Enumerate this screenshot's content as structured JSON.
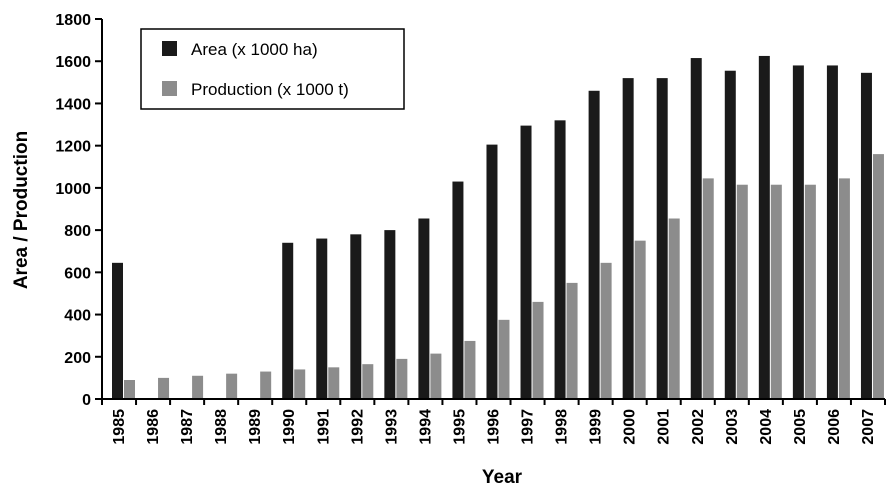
{
  "chart_data": {
    "type": "bar",
    "xlabel": "Year",
    "ylabel": "Area / Production",
    "ylim": [
      0,
      1800
    ],
    "ytick_step": 200,
    "grid": false,
    "legend_position": "top-left",
    "categories": [
      "1985",
      "1986",
      "1987",
      "1988",
      "1989",
      "1990",
      "1991",
      "1992",
      "1993",
      "1994",
      "1995",
      "1996",
      "1997",
      "1998",
      "1999",
      "2000",
      "2001",
      "2002",
      "2003",
      "2004",
      "2005",
      "2006",
      "2007"
    ],
    "series": [
      {
        "name": "Area (x 1000 ha)",
        "color": "#1a1a1a",
        "values": [
          645,
          0,
          0,
          0,
          0,
          740,
          760,
          780,
          800,
          855,
          1030,
          1205,
          1295,
          1320,
          1460,
          1520,
          1520,
          1615,
          1555,
          1625,
          1580,
          1580,
          1545
        ]
      },
      {
        "name": "Production (x 1000 t)",
        "color": "#8c8c8c",
        "values": [
          90,
          100,
          110,
          120,
          130,
          140,
          150,
          165,
          190,
          215,
          275,
          375,
          460,
          550,
          645,
          750,
          855,
          1045,
          1015,
          1015,
          1015,
          1045,
          1160
        ]
      }
    ]
  }
}
